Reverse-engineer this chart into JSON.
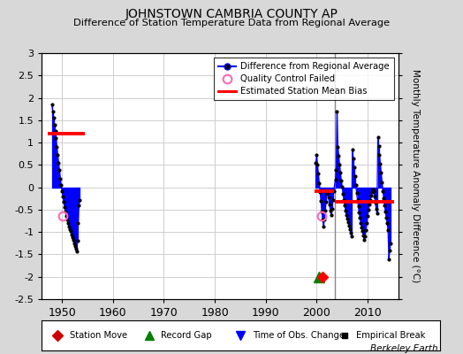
{
  "title": "JOHNSTOWN CAMBRIA COUNTY AP",
  "subtitle": "Difference of Station Temperature Data from Regional Average",
  "ylabel": "Monthly Temperature Anomaly Difference (°C)",
  "bg_color": "#d8d8d8",
  "plot_bg": "#ffffff",
  "xlim": [
    1946,
    2016
  ],
  "ylim": [
    -2.5,
    3.0
  ],
  "xticks": [
    1950,
    1960,
    1970,
    1980,
    1990,
    2000,
    2010
  ],
  "yticks": [
    -2.5,
    -2,
    -1.5,
    -1,
    -0.5,
    0,
    0.5,
    1,
    1.5,
    2,
    2.5,
    3
  ],
  "gray_vline_x": 2003.5,
  "seg1_years": [
    1948.0,
    1948.17,
    1948.33,
    1948.5,
    1948.67,
    1948.83,
    1949.0,
    1949.17,
    1949.33,
    1949.5,
    1949.67,
    1949.83,
    1950.0,
    1950.17,
    1950.33,
    1950.5,
    1950.67,
    1950.83,
    1951.0,
    1951.17,
    1951.33,
    1951.5,
    1951.67,
    1951.83,
    1952.0,
    1952.17,
    1952.33,
    1952.5,
    1952.67,
    1952.83,
    1953.0,
    1953.17,
    1953.33,
    1953.5
  ],
  "seg1_vals": [
    1.85,
    1.7,
    1.55,
    1.4,
    1.25,
    1.1,
    0.9,
    0.72,
    0.55,
    0.38,
    0.2,
    0.05,
    -0.08,
    -0.2,
    -0.32,
    -0.44,
    -0.55,
    -0.64,
    -0.72,
    -0.8,
    -0.87,
    -0.93,
    -0.98,
    -1.05,
    -1.12,
    -1.18,
    -1.25,
    -1.32,
    -1.38,
    -1.44,
    -1.2,
    -0.8,
    -0.4,
    -0.28
  ],
  "seg1_bias_y": 1.2,
  "seg1_bias_x1": 1947.2,
  "seg1_bias_x2": 1954.5,
  "seg1_qc_x": 1950.05,
  "seg1_qc_y": -0.65,
  "seg2_years": [
    1999.83,
    2000.0,
    2000.17,
    2000.33,
    2000.5,
    2000.67,
    2000.83,
    2001.0,
    2001.17,
    2001.33,
    2001.5,
    2001.67,
    2001.83,
    2002.0,
    2002.17,
    2002.33,
    2002.5,
    2002.67,
    2002.83,
    2003.0,
    2003.17,
    2003.33,
    2003.67,
    2003.83,
    2004.0,
    2004.17,
    2004.33,
    2004.5,
    2004.67,
    2004.83,
    2005.0,
    2005.17,
    2005.33,
    2005.5,
    2005.67,
    2005.83,
    2006.0,
    2006.17,
    2006.33,
    2006.5,
    2006.67,
    2006.83,
    2007.0,
    2007.17,
    2007.33,
    2007.5,
    2007.67,
    2007.83,
    2008.0,
    2008.17,
    2008.33,
    2008.5,
    2008.67,
    2008.83,
    2009.0,
    2009.17,
    2009.33,
    2009.5,
    2009.67,
    2009.83,
    2010.0,
    2010.17,
    2010.33,
    2010.5,
    2010.67,
    2010.83,
    2011.0,
    2011.17,
    2011.33,
    2011.5,
    2011.67,
    2011.83,
    2012.0,
    2012.17,
    2012.33,
    2012.5,
    2012.67,
    2012.83,
    2013.0,
    2013.17,
    2013.33,
    2013.5,
    2013.67,
    2013.83,
    2014.0,
    2014.17,
    2014.33,
    2014.5
  ],
  "seg2_vals": [
    0.55,
    0.72,
    0.5,
    0.3,
    0.1,
    -0.1,
    -0.3,
    -0.55,
    -0.72,
    -0.88,
    -0.72,
    -0.52,
    -0.33,
    -0.15,
    -0.08,
    -0.22,
    -0.38,
    -0.52,
    -0.62,
    -0.48,
    -0.28,
    -0.08,
    0.18,
    0.38,
    1.7,
    0.9,
    0.7,
    0.5,
    0.32,
    0.15,
    0.02,
    -0.15,
    -0.28,
    -0.4,
    -0.52,
    -0.62,
    -0.7,
    -0.78,
    -0.86,
    -0.94,
    -1.02,
    -1.1,
    0.85,
    0.65,
    0.45,
    0.25,
    0.05,
    -0.12,
    -0.28,
    -0.42,
    -0.56,
    -0.68,
    -0.8,
    -0.9,
    -0.98,
    -1.08,
    -1.18,
    -1.1,
    -0.95,
    -0.8,
    -0.65,
    -0.5,
    -0.38,
    -0.28,
    -0.18,
    -0.1,
    -0.05,
    -0.08,
    -0.2,
    -0.35,
    -0.48,
    -0.58,
    1.12,
    0.92,
    0.72,
    0.52,
    0.32,
    0.12,
    -0.08,
    -0.25,
    -0.4,
    -0.55,
    -0.68,
    -0.8,
    -0.95,
    -1.6,
    -1.42,
    -1.25
  ],
  "seg2_bias1_y": -0.08,
  "seg2_bias1_x1": 1999.5,
  "seg2_bias1_x2": 2003.4,
  "seg2_bias2_y": -0.32,
  "seg2_bias2_x1": 2003.6,
  "seg2_bias2_x2": 2015.2,
  "seg2_qc_x": 2001.0,
  "seg2_qc_y": -0.65,
  "record_gap_x": 2000.4,
  "record_gap_y": -2.0,
  "station_move_x": 2001.1,
  "station_move_y": -2.0,
  "watermark": "Berkeley Earth"
}
